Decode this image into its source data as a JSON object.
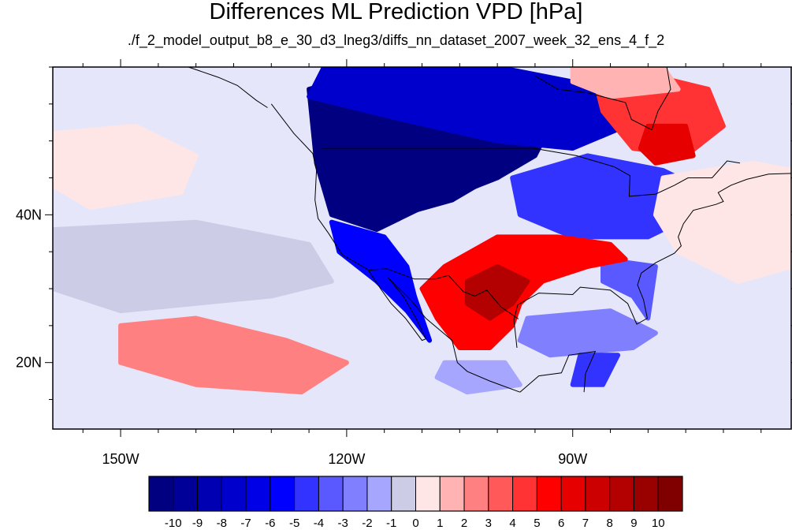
{
  "header": {
    "title": "Differences ML Prediction VPD [hPa]",
    "subtitle": "./f_2_model_output_b8_e_30_d3_lneg3/diffs_nn_dataset_2007_week_32_ens_4_f_2"
  },
  "map": {
    "projection": "cylindrical-equidistant",
    "lon_range": [
      -159,
      -61
    ],
    "lat_range": [
      11,
      60
    ],
    "lon_ticks": [
      {
        "value": -150,
        "label": "150W"
      },
      {
        "value": -120,
        "label": "120W"
      },
      {
        "value": -90,
        "label": "90W"
      }
    ],
    "lat_ticks": [
      {
        "value": 40,
        "label": "40N"
      },
      {
        "value": 20,
        "label": "20N"
      }
    ],
    "background_value": 0.5,
    "regions": [
      {
        "name": "northwest-us-canada-deficit",
        "value": -10.5,
        "lonlat": [
          [
            -125,
            57
          ],
          [
            -118,
            59
          ],
          [
            -108,
            58
          ],
          [
            -98,
            56
          ],
          [
            -93,
            52
          ],
          [
            -95,
            48
          ],
          [
            -100,
            45
          ],
          [
            -110,
            41
          ],
          [
            -116,
            38
          ],
          [
            -122,
            40
          ],
          [
            -124,
            47
          ]
        ]
      },
      {
        "name": "northwest-core-deficit",
        "value": -11,
        "lonlat": [
          [
            -123,
            48
          ],
          [
            -118,
            52
          ],
          [
            -110,
            51
          ],
          [
            -102,
            48
          ],
          [
            -101,
            45
          ],
          [
            -106,
            42
          ],
          [
            -113,
            40
          ],
          [
            -120,
            41
          ],
          [
            -123,
            44
          ]
        ]
      },
      {
        "name": "canada-north-deficit",
        "value": -8,
        "lonlat": [
          [
            -123,
            60
          ],
          [
            -100,
            60
          ],
          [
            -85,
            57
          ],
          [
            -83,
            52
          ],
          [
            -90,
            49
          ],
          [
            -100,
            50
          ],
          [
            -113,
            53
          ],
          [
            -125,
            56
          ]
        ]
      },
      {
        "name": "great-lakes-east-deficit",
        "value": -5,
        "lonlat": [
          [
            -98,
            45
          ],
          [
            -88,
            48
          ],
          [
            -78,
            46
          ],
          [
            -72,
            43
          ],
          [
            -74,
            40
          ],
          [
            -80,
            37
          ],
          [
            -90,
            37
          ],
          [
            -97,
            40
          ]
        ]
      },
      {
        "name": "california-baja-deficit",
        "value": -6,
        "lonlat": [
          [
            -122,
            39
          ],
          [
            -115,
            37
          ],
          [
            -112,
            33
          ],
          [
            -111,
            29
          ],
          [
            -109,
            23
          ],
          [
            -112,
            27
          ],
          [
            -116,
            31
          ],
          [
            -121,
            35
          ]
        ]
      },
      {
        "name": "southeast-coast-deficit",
        "value": -4,
        "lonlat": [
          [
            -86,
            34
          ],
          [
            -79,
            33
          ],
          [
            -80,
            26
          ],
          [
            -82,
            29
          ],
          [
            -86,
            31
          ]
        ]
      },
      {
        "name": "gulf-mexico-deficit",
        "value": -3,
        "lonlat": [
          [
            -96,
            26
          ],
          [
            -85,
            27
          ],
          [
            -79,
            24
          ],
          [
            -82,
            22
          ],
          [
            -93,
            21
          ],
          [
            -97,
            23
          ]
        ]
      },
      {
        "name": "yucatan-strip-deficit",
        "value": -5,
        "lonlat": [
          [
            -89,
            21
          ],
          [
            -84,
            21
          ],
          [
            -86,
            17
          ],
          [
            -90,
            17
          ]
        ]
      },
      {
        "name": "pacific-west-deficit",
        "value": -2,
        "lonlat": [
          [
            -149,
            35
          ],
          [
            -140,
            36
          ],
          [
            -134,
            35
          ],
          [
            -131,
            32
          ],
          [
            -137,
            29
          ],
          [
            -146,
            29
          ],
          [
            -150,
            32
          ]
        ]
      },
      {
        "name": "pacific-band-deficit",
        "value": -1,
        "lonlat": [
          [
            -159,
            38
          ],
          [
            -140,
            39
          ],
          [
            -125,
            36
          ],
          [
            -122,
            31
          ],
          [
            -130,
            29
          ],
          [
            -150,
            27
          ],
          [
            -159,
            30
          ]
        ]
      },
      {
        "name": "central-mexico-deficit",
        "value": -2,
        "lonlat": [
          [
            -107,
            20
          ],
          [
            -99,
            20
          ],
          [
            -97,
            17
          ],
          [
            -104,
            16
          ],
          [
            -108,
            18
          ]
        ]
      },
      {
        "name": "south-central-us-surplus",
        "value": 6,
        "lonlat": [
          [
            -107,
            33
          ],
          [
            -100,
            37
          ],
          [
            -92,
            37
          ],
          [
            -85,
            36
          ],
          [
            -83,
            34
          ],
          [
            -88,
            33
          ],
          [
            -94,
            31
          ],
          [
            -97,
            28
          ],
          [
            -98,
            25
          ],
          [
            -101,
            22
          ],
          [
            -105,
            22
          ],
          [
            -108,
            26
          ],
          [
            -110,
            30
          ]
        ]
      },
      {
        "name": "texas-core-surplus",
        "value": 9,
        "lonlat": [
          [
            -104,
            31
          ],
          [
            -100,
            33
          ],
          [
            -96,
            31
          ],
          [
            -98,
            28
          ],
          [
            -101,
            26
          ],
          [
            -104,
            28
          ]
        ]
      },
      {
        "name": "quebec-surplus",
        "value": 5,
        "lonlat": [
          [
            -87,
            58
          ],
          [
            -80,
            59
          ],
          [
            -72,
            57
          ],
          [
            -70,
            52
          ],
          [
            -75,
            48
          ],
          [
            -82,
            49
          ],
          [
            -86,
            54
          ]
        ]
      },
      {
        "name": "quebec-core-surplus",
        "value": 7,
        "lonlat": [
          [
            -80,
            52
          ],
          [
            -75,
            52
          ],
          [
            -74,
            48
          ],
          [
            -79,
            47
          ],
          [
            -81,
            49
          ]
        ]
      },
      {
        "name": "atlantic-surplus",
        "value": 1,
        "lonlat": [
          [
            -78,
            45
          ],
          [
            -66,
            47
          ],
          [
            -61,
            46
          ],
          [
            -61,
            33
          ],
          [
            -68,
            31
          ],
          [
            -76,
            35
          ],
          [
            -79,
            40
          ]
        ]
      },
      {
        "name": "subtropical-pacific-surplus",
        "value": 3,
        "lonlat": [
          [
            -150,
            25
          ],
          [
            -140,
            26
          ],
          [
            -128,
            23
          ],
          [
            -120,
            20
          ],
          [
            -126,
            16
          ],
          [
            -140,
            17
          ],
          [
            -150,
            20
          ]
        ]
      },
      {
        "name": "west-pacific-surplus",
        "value": 1,
        "lonlat": [
          [
            -159,
            51
          ],
          [
            -148,
            52
          ],
          [
            -140,
            48
          ],
          [
            -142,
            43
          ],
          [
            -154,
            41
          ],
          [
            -159,
            44
          ]
        ]
      },
      {
        "name": "hudson-bay-surplus",
        "value": 2,
        "lonlat": [
          [
            -90,
            60
          ],
          [
            -78,
            60
          ],
          [
            -76,
            57
          ],
          [
            -85,
            56
          ],
          [
            -90,
            58
          ]
        ]
      }
    ],
    "colors": [
      "#000080",
      "#000099",
      "#0000b3",
      "#0000cc",
      "#0000e6",
      "#0000ff",
      "#3333ff",
      "#5959ff",
      "#8080ff",
      "#a6a6ff",
      "#cccce6",
      "#e6e6fa",
      "#ffe6e6",
      "#ffb3b3",
      "#ff8080",
      "#ff5959",
      "#ff3333",
      "#ff0000",
      "#e60000",
      "#cc0000",
      "#b30000",
      "#990000",
      "#800000"
    ]
  },
  "colorbar": {
    "levels": [
      -10,
      -9,
      -8,
      -7,
      -6,
      -5,
      -4,
      -3,
      -2,
      -1,
      0,
      1,
      2,
      3,
      4,
      5,
      6,
      7,
      8,
      9,
      10
    ],
    "colors": [
      "#000080",
      "#000099",
      "#0000b3",
      "#0000cc",
      "#0000e6",
      "#0000ff",
      "#3333ff",
      "#5959ff",
      "#8080ff",
      "#a6a6ff",
      "#cccce6",
      "#ffe6e6",
      "#ffb3b3",
      "#ff8080",
      "#ff5959",
      "#ff3333",
      "#ff0000",
      "#e60000",
      "#cc0000",
      "#b30000",
      "#990000",
      "#800000"
    ]
  }
}
